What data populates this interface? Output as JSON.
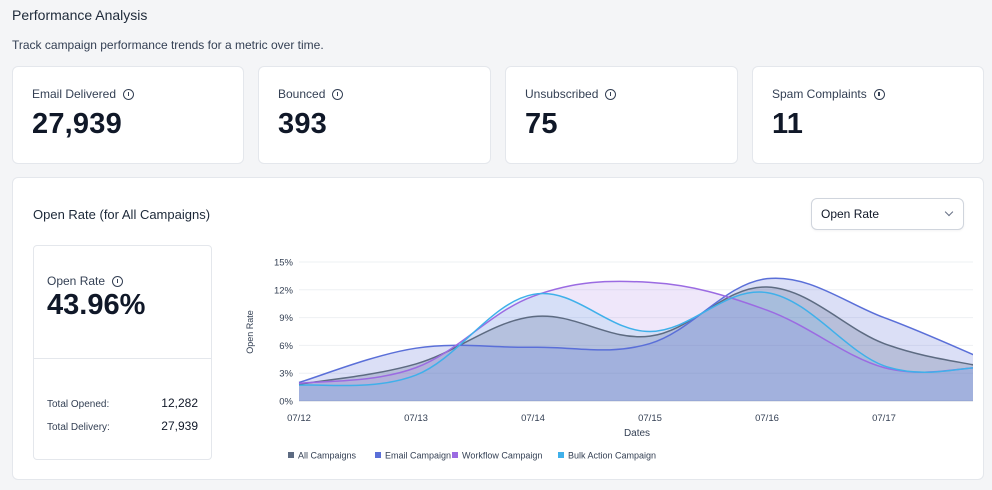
{
  "page": {
    "title": "Performance Analysis",
    "subtitle": "Track campaign performance trends for a metric over time."
  },
  "stats": [
    {
      "label": "Email Delivered",
      "value": "27,939",
      "icon": "info-icon"
    },
    {
      "label": "Bounced",
      "value": "393",
      "icon": "info-icon"
    },
    {
      "label": "Unsubscribed",
      "value": "75",
      "icon": "info-icon"
    },
    {
      "label": "Spam Complaints",
      "value": "11",
      "icon": "info-icon"
    }
  ],
  "panel": {
    "title": "Open Rate (for All Campaigns)",
    "select": {
      "value": "Open Rate",
      "icon": "chevron-down-icon"
    },
    "summary": {
      "label": "Open Rate",
      "value": "43.96%",
      "total_opened_label": "Total Opened:",
      "total_opened": "12,282",
      "total_delivery_label": "Total Delivery:",
      "total_delivery": "27,939"
    }
  },
  "chart_data": {
    "type": "area",
    "x": [
      "07/12",
      "07/13",
      "07/14",
      "07/15",
      "07/16",
      "07/17"
    ],
    "xlabel": "Dates",
    "ylabel": "Open Rate",
    "y_ticks": [
      "0%",
      "3%",
      "6%",
      "9%",
      "12%",
      "15%"
    ],
    "ylim": [
      0,
      15
    ],
    "grid": true,
    "legend": "bottom",
    "series": [
      {
        "name": "All Campaigns",
        "color": "#5d6b82",
        "points": [
          [
            0,
            1.8
          ],
          [
            1,
            4.0
          ],
          [
            2,
            9.1
          ],
          [
            3,
            7.0
          ],
          [
            4,
            12.3
          ],
          [
            5,
            6.2
          ],
          [
            5.8,
            3.8
          ]
        ]
      },
      {
        "name": "Email Campaign",
        "color": "#5a6fd8",
        "points": [
          [
            0,
            2.0
          ],
          [
            1,
            5.7
          ],
          [
            2,
            5.8
          ],
          [
            3,
            6.2
          ],
          [
            4,
            13.2
          ],
          [
            5,
            9.0
          ],
          [
            5.8,
            4.8
          ]
        ]
      },
      {
        "name": "Workflow Campaign",
        "color": "#9b6be2",
        "points": [
          [
            0,
            1.9
          ],
          [
            1,
            3.6
          ],
          [
            2,
            11.3
          ],
          [
            3,
            12.8
          ],
          [
            4,
            9.8
          ],
          [
            5,
            3.6
          ],
          [
            5.8,
            3.6
          ]
        ]
      },
      {
        "name": "Bulk Action Campaign",
        "color": "#3fb0ea",
        "points": [
          [
            0,
            1.7
          ],
          [
            1,
            2.8
          ],
          [
            2,
            11.5
          ],
          [
            3,
            7.5
          ],
          [
            4,
            11.7
          ],
          [
            5,
            3.8
          ],
          [
            5.8,
            3.6
          ]
        ]
      }
    ]
  }
}
